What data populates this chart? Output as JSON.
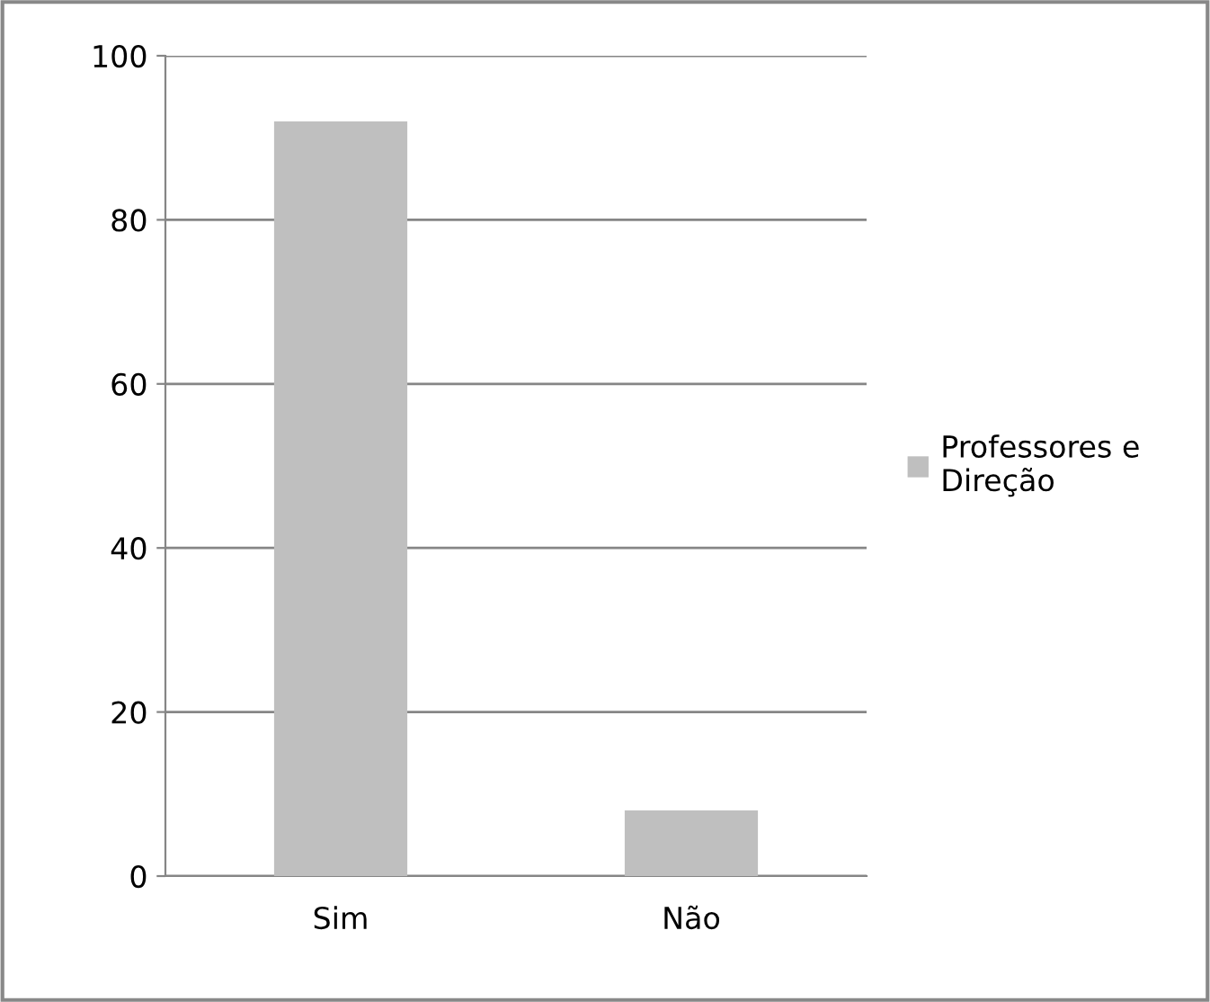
{
  "chart_data": {
    "type": "bar",
    "categories": [
      "Sim",
      "Não"
    ],
    "series": [
      {
        "name": "Professores e\nDireção",
        "color": "#bfbfbf",
        "values": [
          92,
          8
        ]
      }
    ],
    "ylim": [
      0,
      100
    ],
    "yticks": [
      0,
      20,
      40,
      60,
      80,
      100
    ],
    "grid": "y",
    "legend": "right"
  }
}
